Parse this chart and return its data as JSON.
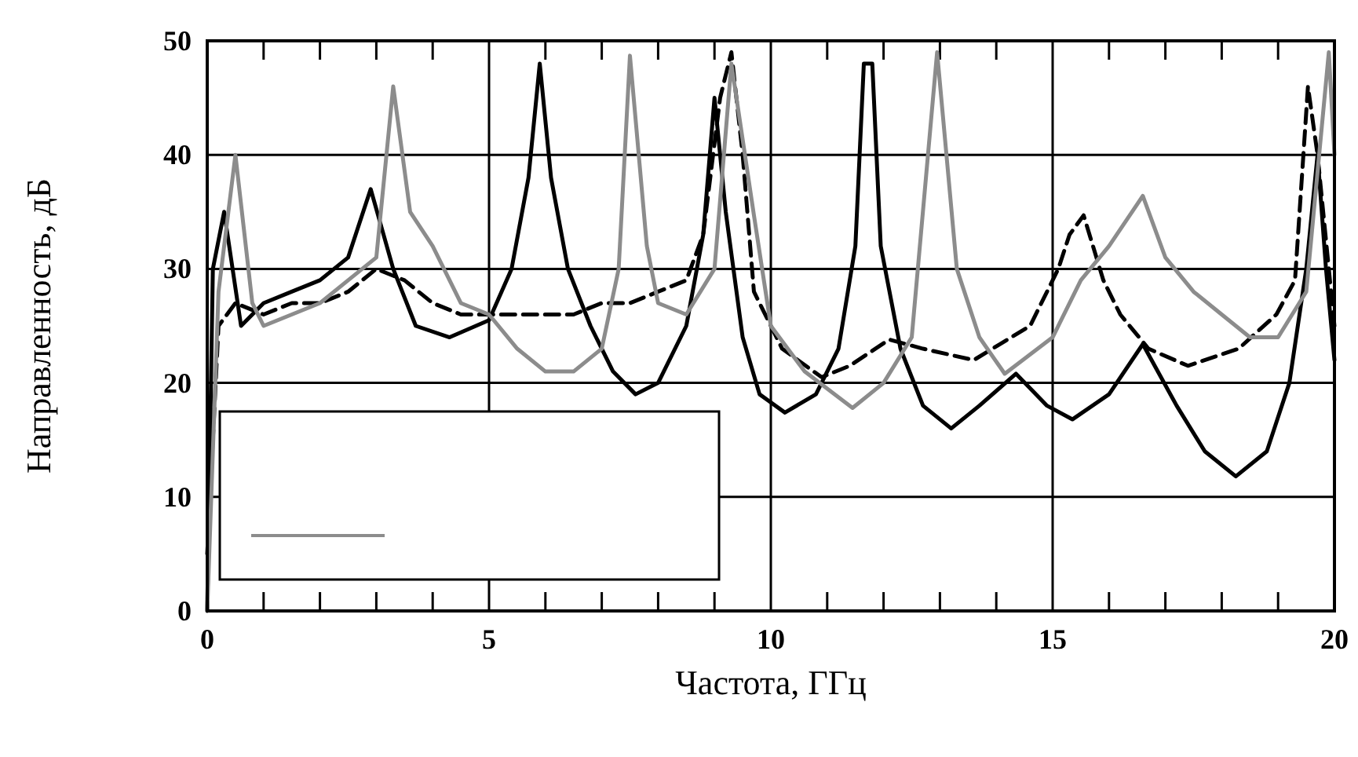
{
  "chart_data": {
    "type": "line",
    "xlabel": "Частота, ГГц",
    "ylabel": "Направленность, дБ",
    "xlim": [
      0,
      20
    ],
    "ylim": [
      0,
      50
    ],
    "xticks": [
      0,
      {
        "value": 1,
        "label": null
      },
      {
        "value": 2,
        "label": null
      },
      {
        "value": 3,
        "label": null
      },
      {
        "value": 4,
        "label": null
      },
      5,
      {
        "value": 6,
        "label": null
      },
      {
        "value": 7,
        "label": null
      },
      {
        "value": 8,
        "label": null
      },
      {
        "value": 9,
        "label": null
      },
      10,
      {
        "value": 11,
        "label": null
      },
      {
        "value": 12,
        "label": null
      },
      {
        "value": 13,
        "label": null
      },
      {
        "value": 14,
        "label": null
      },
      15,
      {
        "value": 16,
        "label": null
      },
      {
        "value": 17,
        "label": null
      },
      {
        "value": 18,
        "label": null
      },
      {
        "value": 19,
        "label": null
      },
      20
    ],
    "yticks": [
      0,
      10,
      20,
      30,
      40,
      50
    ],
    "grid": true,
    "marker": "none",
    "series": [
      {
        "color": "#000000",
        "line_style": "solid",
        "x": [
          0,
          0.1,
          0.3,
          0.6,
          1,
          1.5,
          2,
          2.5,
          2.9,
          3.3,
          3.7,
          4.3,
          5,
          5.4,
          5.7,
          5.9,
          6.1,
          6.4,
          6.8,
          7.2,
          7.6,
          8,
          8.5,
          8.8,
          9,
          9.2,
          9.5,
          9.8,
          10.25,
          10.8,
          11.2,
          11.5,
          11.65,
          11.8,
          11.95,
          12.3,
          12.7,
          13.2,
          13.7,
          14.35,
          14.9,
          15.35,
          16,
          16.6,
          17.2,
          17.7,
          18.25,
          18.8,
          19.2,
          19.5,
          19.7,
          19.85,
          20
        ],
        "values": [
          0,
          30,
          35,
          25,
          27,
          28,
          29,
          31,
          37,
          30,
          25,
          24,
          25.5,
          30,
          38,
          48,
          38,
          30,
          25,
          21,
          19,
          20,
          25,
          33,
          45,
          35,
          24,
          19,
          17.4,
          19,
          23,
          32,
          48,
          48,
          32,
          23,
          18,
          16,
          18,
          20.8,
          18,
          16.8,
          19,
          23.4,
          18,
          14,
          11.8,
          14,
          20,
          30,
          40,
          30,
          22
        ]
      },
      {
        "color": "#000000",
        "line_style": "dashed",
        "x": [
          0,
          0.2,
          0.5,
          1,
          1.5,
          2,
          2.5,
          3,
          3.5,
          4,
          4.5,
          5,
          5.5,
          6,
          6.5,
          7,
          7.5,
          8,
          8.5,
          8.8,
          9.1,
          9.3,
          9.5,
          9.7,
          10.2,
          10.9,
          11.4,
          12.1,
          12.7,
          13.6,
          14.6,
          15.1,
          15.3,
          15.55,
          15.9,
          16.2,
          16.7,
          17.4,
          18.3,
          18.97,
          19.3,
          19.53,
          19.7,
          20
        ],
        "values": [
          5,
          25,
          27,
          26,
          27,
          27,
          28,
          30,
          29,
          27,
          26,
          26,
          26,
          26,
          26,
          27,
          27,
          28,
          29,
          33,
          45,
          49,
          40,
          28,
          23,
          20.5,
          21.5,
          23.8,
          23,
          22,
          25,
          30,
          33,
          34.7,
          29,
          26,
          23,
          21.5,
          23,
          26,
          29,
          46,
          40,
          25
        ]
      },
      {
        "color": "#8c8c8c",
        "line_style": "solid",
        "x": [
          0,
          0.2,
          0.5,
          0.8,
          1,
          1.5,
          2,
          2.5,
          3,
          3.3,
          3.6,
          4,
          4.5,
          5,
          5.5,
          6,
          6.5,
          7,
          7.3,
          7.5,
          7.8,
          8,
          8.5,
          9,
          9.3,
          9.7,
          10,
          10.6,
          11.45,
          12,
          12.5,
          12.95,
          13.3,
          13.7,
          14.15,
          15,
          15.5,
          16,
          16.6,
          17,
          17.5,
          18,
          18.5,
          19,
          19.5,
          19.9,
          20
        ],
        "values": [
          0,
          28,
          40,
          27,
          25,
          26,
          27,
          29,
          31,
          46,
          35,
          32,
          27,
          26,
          23,
          21,
          21,
          23,
          30,
          48.7,
          32,
          27,
          26,
          30,
          48,
          34.7,
          25,
          21,
          17.8,
          20,
          24,
          49,
          30,
          24,
          20.8,
          24,
          29,
          32,
          36.4,
          31,
          28,
          26,
          24,
          24,
          28,
          49,
          40
        ]
      }
    ]
  }
}
